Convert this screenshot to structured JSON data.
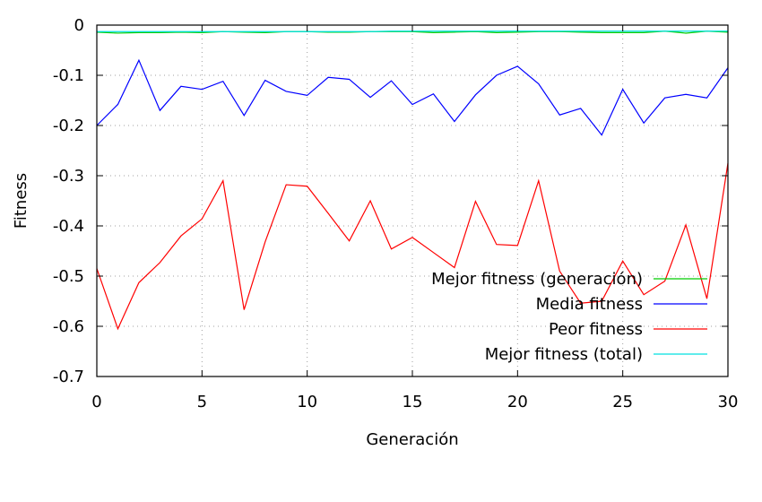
{
  "chart_data": {
    "type": "line",
    "title": "",
    "xlabel": "Generación",
    "ylabel": "Fitness",
    "xlim": [
      0,
      30
    ],
    "ylim": [
      -0.7,
      0
    ],
    "xticks": [
      0,
      5,
      10,
      15,
      20,
      25,
      30
    ],
    "xtick_labels": [
      "0",
      "5",
      "10",
      "15",
      "20",
      "25",
      "30"
    ],
    "yticks": [
      0,
      -0.1,
      -0.2,
      -0.3,
      -0.4,
      -0.5,
      -0.6,
      -0.7
    ],
    "ytick_labels": [
      "0",
      "-0.1",
      "-0.2",
      "-0.3",
      "-0.4",
      "-0.5",
      "-0.6",
      "-0.7"
    ],
    "grid": true,
    "legend_position": "bottom-right",
    "x": [
      0,
      1,
      2,
      3,
      4,
      5,
      6,
      7,
      8,
      9,
      10,
      11,
      12,
      13,
      14,
      15,
      16,
      17,
      18,
      19,
      20,
      21,
      22,
      23,
      24,
      25,
      26,
      27,
      28,
      29,
      30
    ],
    "series": [
      {
        "name": "Mejor fitness (generación)",
        "color": "#00cc00",
        "values": [
          -0.014,
          -0.016,
          -0.015,
          -0.015,
          -0.014,
          -0.015,
          -0.013,
          -0.014,
          -0.015,
          -0.013,
          -0.013,
          -0.014,
          -0.014,
          -0.013,
          -0.013,
          -0.013,
          -0.015,
          -0.014,
          -0.013,
          -0.015,
          -0.014,
          -0.013,
          -0.013,
          -0.014,
          -0.015,
          -0.015,
          -0.015,
          -0.012,
          -0.016,
          -0.012,
          -0.014
        ]
      },
      {
        "name": "Media fitness",
        "color": "#0000ff",
        "values": [
          -0.2,
          -0.158,
          -0.07,
          -0.17,
          -0.122,
          -0.128,
          -0.112,
          -0.18,
          -0.11,
          -0.132,
          -0.14,
          -0.104,
          -0.108,
          -0.144,
          -0.111,
          -0.158,
          -0.137,
          -0.192,
          -0.139,
          -0.1,
          -0.082,
          -0.117,
          -0.179,
          -0.166,
          -0.219,
          -0.128,
          -0.195,
          -0.145,
          -0.138,
          -0.145,
          -0.085
        ]
      },
      {
        "name": "Peor fitness",
        "color": "#ff0000",
        "values": [
          -0.485,
          -0.605,
          -0.513,
          -0.473,
          -0.42,
          -0.386,
          -0.31,
          -0.567,
          -0.432,
          -0.318,
          -0.321,
          -0.375,
          -0.43,
          -0.35,
          -0.446,
          -0.423,
          -0.453,
          -0.483,
          -0.351,
          -0.437,
          -0.439,
          -0.31,
          -0.49,
          -0.554,
          -0.55,
          -0.47,
          -0.537,
          -0.51,
          -0.398,
          -0.545,
          -0.275
        ]
      },
      {
        "name": "Mejor fitness (total)",
        "color": "#00e0e0",
        "values": [
          -0.013,
          -0.013,
          -0.013,
          -0.013,
          -0.013,
          -0.013,
          -0.013,
          -0.013,
          -0.013,
          -0.013,
          -0.013,
          -0.013,
          -0.013,
          -0.013,
          -0.012,
          -0.012,
          -0.012,
          -0.012,
          -0.012,
          -0.012,
          -0.012,
          -0.012,
          -0.012,
          -0.012,
          -0.012,
          -0.012,
          -0.012,
          -0.012,
          -0.012,
          -0.012,
          -0.012
        ]
      }
    ]
  }
}
